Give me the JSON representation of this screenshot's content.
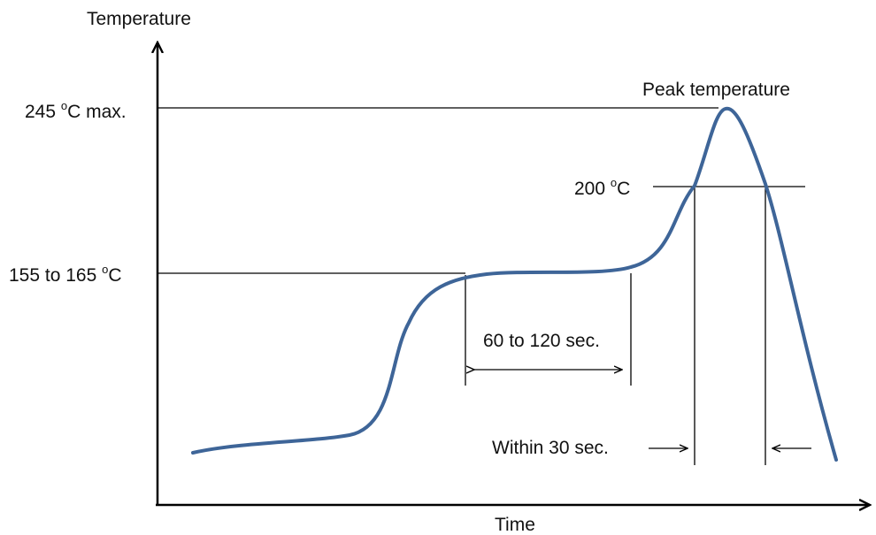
{
  "axes": {
    "y_label": "Temperature",
    "x_label": "Time"
  },
  "levels": {
    "peak_max": {
      "value": "245",
      "degree": "o",
      "unit": "C max."
    },
    "reflow": {
      "value": "200",
      "degree": "o",
      "unit": "C"
    },
    "preheat": {
      "value": "155 to 165",
      "degree": "o",
      "unit": "C"
    }
  },
  "annotations": {
    "peak": "Peak temperature",
    "preheat_duration": "60 to 120 sec.",
    "reflow_duration": "Within 30 sec."
  },
  "colors": {
    "curve": "#3e6598",
    "lines": "#000000"
  }
}
